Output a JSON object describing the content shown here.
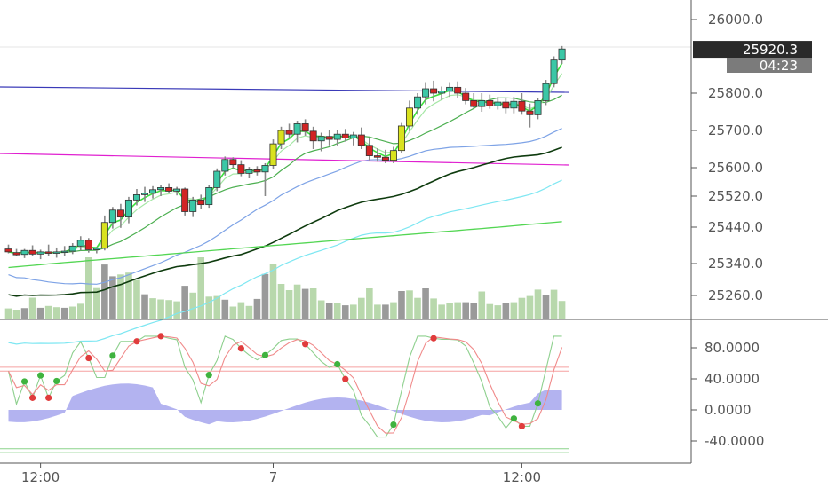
{
  "chart_data": {
    "type": "candlestick",
    "price_axis": {
      "ticks": [
        {
          "value": 26000,
          "label": "26000.0"
        },
        {
          "value": 25800,
          "label": "25800.0"
        },
        {
          "value": 25700,
          "label": "25700.0"
        },
        {
          "value": 25600,
          "label": "25600.0"
        },
        {
          "value": 25520,
          "label": "25520.0"
        },
        {
          "value": 25440,
          "label": "25440.0"
        },
        {
          "value": 25340,
          "label": "25340.0"
        },
        {
          "value": 25260,
          "label": "25260.0"
        }
      ],
      "last_price": {
        "value": 25920.3,
        "label": "25920.3",
        "color": "#2a2a2a"
      },
      "countdown": {
        "label": "04:23",
        "color": "#7b7b7b"
      }
    },
    "oscillator_axis": {
      "ticks": [
        {
          "value": 80,
          "label": "80.0000"
        },
        {
          "value": 40,
          "label": "40.0000"
        },
        {
          "value": 0,
          "label": "0.0000"
        },
        {
          "value": -40,
          "label": "-40.0000"
        }
      ]
    },
    "time_axis": {
      "labels": [
        {
          "label": "12:00",
          "bar": 4
        },
        {
          "label": "7",
          "bar": 33
        },
        {
          "label": "12:00",
          "bar": 64
        }
      ]
    },
    "candles": [
      [
        25380,
        25392,
        25368,
        25372
      ],
      [
        25370,
        25380,
        25360,
        25364
      ],
      [
        25365,
        25380,
        25355,
        25376
      ],
      [
        25376,
        25390,
        25360,
        25366
      ],
      [
        25366,
        25378,
        25352,
        25372
      ],
      [
        25372,
        25392,
        25360,
        25368
      ],
      [
        25368,
        25384,
        25356,
        25372
      ],
      [
        25372,
        25388,
        25362,
        25374
      ],
      [
        25374,
        25396,
        25366,
        25388
      ],
      [
        25388,
        25415,
        25376,
        25404
      ],
      [
        25404,
        25410,
        25370,
        25378
      ],
      [
        25378,
        25386,
        25368,
        25382
      ],
      [
        25382,
        25470,
        25376,
        25452
      ],
      [
        25452,
        25492,
        25436,
        25484
      ],
      [
        25484,
        25500,
        25438,
        25466
      ],
      [
        25466,
        25518,
        25450,
        25510
      ],
      [
        25510,
        25540,
        25496,
        25524
      ],
      [
        25524,
        25546,
        25505,
        25528
      ],
      [
        25528,
        25548,
        25514,
        25538
      ],
      [
        25538,
        25550,
        25520,
        25544
      ],
      [
        25544,
        25556,
        25528,
        25534
      ],
      [
        25534,
        25546,
        25522,
        25540
      ],
      [
        25540,
        25544,
        25470,
        25480
      ],
      [
        25480,
        25518,
        25466,
        25510
      ],
      [
        25510,
        25524,
        25488,
        25498
      ],
      [
        25498,
        25552,
        25490,
        25544
      ],
      [
        25544,
        25598,
        25534,
        25590
      ],
      [
        25590,
        25630,
        25578,
        25622
      ],
      [
        25622,
        25628,
        25598,
        25608
      ],
      [
        25608,
        25620,
        25576,
        25584
      ],
      [
        25584,
        25602,
        25570,
        25594
      ],
      [
        25594,
        25604,
        25578,
        25588
      ],
      [
        25588,
        25612,
        25520,
        25606
      ],
      [
        25606,
        25676,
        25596,
        25664
      ],
      [
        25664,
        25710,
        25650,
        25700
      ],
      [
        25700,
        25718,
        25678,
        25690
      ],
      [
        25690,
        25726,
        25668,
        25718
      ],
      [
        25718,
        25730,
        25686,
        25698
      ],
      [
        25698,
        25710,
        25650,
        25672
      ],
      [
        25672,
        25694,
        25644,
        25684
      ],
      [
        25684,
        25700,
        25660,
        25676
      ],
      [
        25676,
        25700,
        25660,
        25690
      ],
      [
        25690,
        25704,
        25670,
        25680
      ],
      [
        25680,
        25696,
        25660,
        25688
      ],
      [
        25688,
        25708,
        25650,
        25660
      ],
      [
        25660,
        25680,
        25620,
        25632
      ],
      [
        25632,
        25652,
        25616,
        25628
      ],
      [
        25628,
        25648,
        25612,
        25620
      ],
      [
        25620,
        25656,
        25612,
        25646
      ],
      [
        25646,
        25720,
        25640,
        25712
      ],
      [
        25712,
        25780,
        25698,
        25760
      ],
      [
        25760,
        25800,
        25742,
        25790
      ],
      [
        25790,
        25830,
        25770,
        25812
      ],
      [
        25812,
        25834,
        25778,
        25800
      ],
      [
        25800,
        25818,
        25782,
        25806
      ],
      [
        25806,
        25830,
        25790,
        25816
      ],
      [
        25816,
        25832,
        25788,
        25800
      ],
      [
        25800,
        25814,
        25770,
        25780
      ],
      [
        25780,
        25800,
        25760,
        25764
      ],
      [
        25764,
        25800,
        25750,
        25780
      ],
      [
        25780,
        25796,
        25758,
        25766
      ],
      [
        25766,
        25790,
        25756,
        25776
      ],
      [
        25776,
        25788,
        25746,
        25760
      ],
      [
        25760,
        25790,
        25746,
        25778
      ],
      [
        25778,
        25800,
        25742,
        25752
      ],
      [
        25752,
        25772,
        25708,
        25742
      ],
      [
        25742,
        25786,
        25730,
        25780
      ],
      [
        25780,
        25836,
        25768,
        25826
      ],
      [
        25826,
        25900,
        25816,
        25890
      ],
      [
        25890,
        25928,
        25880,
        25920
      ]
    ]
  }
}
